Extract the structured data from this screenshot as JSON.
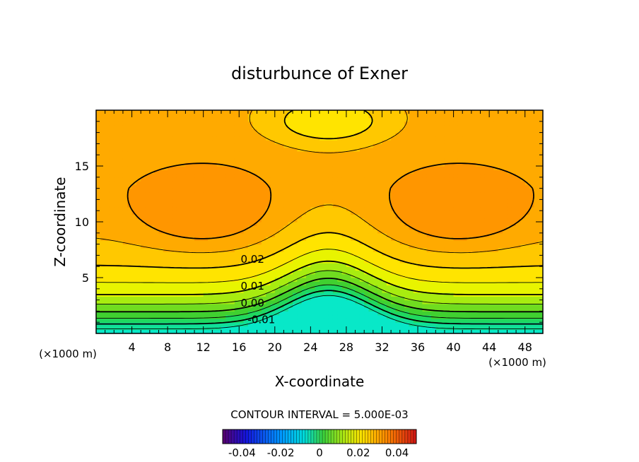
{
  "chart_data": {
    "type": "heatmap",
    "subtype": "filled-contour",
    "title": "disturbunce of Exner",
    "xlabel": "X-coordinate",
    "ylabel": "Z-coordinate",
    "x_unit": "(×1000 m)",
    "y_unit": "(×1000 m)",
    "xlim": [
      0,
      50
    ],
    "ylim": [
      0,
      20
    ],
    "x_ticks": [
      4,
      8,
      12,
      16,
      20,
      24,
      28,
      32,
      36,
      40,
      44,
      48
    ],
    "y_ticks": [
      5,
      10,
      15
    ],
    "contour_interval_text": "CONTOUR INTERVAL = 5.000E-03",
    "contour_labels": [
      {
        "text": "0.02",
        "x": 17.5,
        "y": 6.7
      },
      {
        "text": "0.01",
        "x": 17.5,
        "y": 4.3
      },
      {
        "text": "0.00",
        "x": 17.5,
        "y": 2.8
      },
      {
        "text": "-0.01",
        "x": 18.5,
        "y": 1.3
      }
    ],
    "field_description": "Values increase with height from about -0.02 at the surface to about 0.03 at z≈11; two maxima near x≈12 and x≈40, z≈11; a bulge of low values centered at x≈26.",
    "colorbar": {
      "range": [
        -0.05,
        0.05
      ],
      "tick_labels": [
        "-0.04",
        "-0.02",
        "0",
        "0.02",
        "0.04"
      ],
      "tick_values": [
        -0.04,
        -0.02,
        0,
        0.02,
        0.04
      ]
    },
    "grid": false,
    "colors": {
      "low": "#00f0e0",
      "mid": "#30d030",
      "high": "#ffe000",
      "max": "#ff9a10"
    }
  }
}
